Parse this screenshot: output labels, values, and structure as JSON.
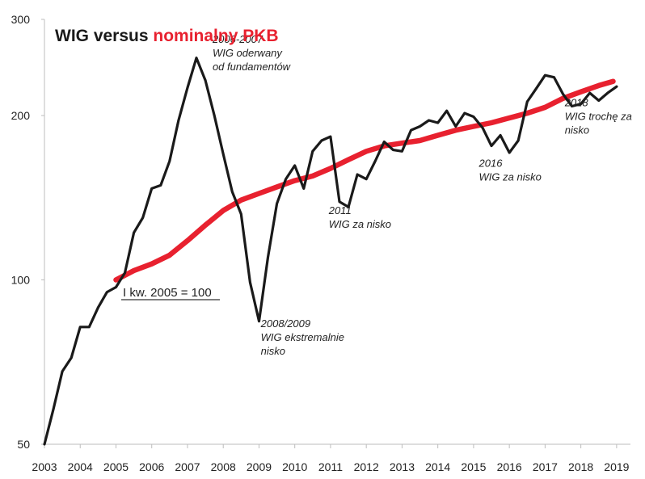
{
  "chart_data": {
    "type": "line",
    "title_part1": "WIG versus ",
    "title_part2": "nominalny PKB",
    "colors": {
      "wig": "#1a1a1a",
      "pkb": "#e8212f",
      "title1": "#1a1a1a",
      "title2": "#e8212f"
    },
    "y_scale": "log",
    "ylim": [
      50,
      300
    ],
    "y_ticks": [
      50,
      100,
      200,
      300
    ],
    "x_ticks": [
      "2003",
      "2004",
      "2005",
      "2006",
      "2007",
      "2008",
      "2009",
      "2010",
      "2011",
      "2012",
      "2013",
      "2014",
      "2015",
      "2016",
      "2017",
      "2018",
      "2019"
    ],
    "xlim": [
      2003,
      2019.5
    ],
    "baseline_label": "I kw. 2005 = 100",
    "series": [
      {
        "name": "WIG",
        "x": [
          2003.0,
          2003.25,
          2003.5,
          2003.75,
          2004.0,
          2004.25,
          2004.5,
          2004.75,
          2005.0,
          2005.25,
          2005.5,
          2005.75,
          2006.0,
          2006.25,
          2006.5,
          2006.75,
          2007.0,
          2007.25,
          2007.5,
          2007.75,
          2008.0,
          2008.25,
          2008.5,
          2008.75,
          2009.0,
          2009.25,
          2009.5,
          2009.75,
          2010.0,
          2010.25,
          2010.5,
          2010.75,
          2011.0,
          2011.25,
          2011.5,
          2011.75,
          2012.0,
          2012.25,
          2012.5,
          2012.75,
          2013.0,
          2013.25,
          2013.5,
          2013.75,
          2014.0,
          2014.25,
          2014.5,
          2014.75,
          2015.0,
          2015.25,
          2015.5,
          2015.75,
          2016.0,
          2016.25,
          2016.5,
          2016.75,
          2017.0,
          2017.25,
          2017.5,
          2017.75,
          2018.0,
          2018.25,
          2018.5,
          2018.75,
          2019.0
        ],
        "values": [
          50,
          58,
          68,
          72,
          82,
          82,
          89,
          95,
          97,
          103,
          122,
          130,
          147,
          149,
          165,
          196,
          225,
          255,
          232,
          200,
          170,
          145,
          132,
          99,
          84,
          110,
          138,
          153,
          162,
          147,
          172,
          180,
          183,
          139,
          136,
          156,
          153,
          165,
          179,
          173,
          172,
          188,
          191,
          196,
          194,
          204,
          191,
          202,
          199,
          190,
          176,
          184,
          171,
          180,
          212,
          224,
          237,
          235,
          219,
          208,
          210,
          220,
          213,
          220,
          226
        ]
      },
      {
        "name": "nominalny PKB",
        "x": [
          2005.0,
          2005.5,
          2006.0,
          2006.5,
          2007.0,
          2007.5,
          2008.0,
          2008.5,
          2009.0,
          2009.5,
          2010.0,
          2010.5,
          2011.0,
          2011.5,
          2012.0,
          2012.5,
          2013.0,
          2013.5,
          2014.0,
          2014.5,
          2015.0,
          2015.5,
          2016.0,
          2016.5,
          2017.0,
          2017.5,
          2018.0,
          2018.5,
          2018.9
        ],
        "values": [
          100,
          104,
          107,
          111,
          118,
          126,
          134,
          140,
          144,
          148,
          152,
          155,
          160,
          166,
          172,
          176,
          178,
          180,
          184,
          188,
          191,
          194,
          198,
          202,
          207,
          215,
          221,
          227,
          231
        ]
      }
    ],
    "annotations": [
      {
        "x": 2007.7,
        "y": 272,
        "lines": [
          "2006-2007",
          "WIG oderwany",
          "od fundamentów"
        ]
      },
      {
        "x": 2009.05,
        "y": 82,
        "lines": [
          "2008/2009",
          "WIG ekstremalnie",
          "nisko"
        ]
      },
      {
        "x": 2010.95,
        "y": 132,
        "lines": [
          "2011",
          "WIG za nisko"
        ]
      },
      {
        "x": 2015.15,
        "y": 161,
        "lines": [
          "2016",
          "WIG za nisko"
        ]
      },
      {
        "x": 2017.55,
        "y": 208,
        "lines": [
          "2018",
          "WIG trochę za",
          "nisko"
        ]
      }
    ]
  }
}
